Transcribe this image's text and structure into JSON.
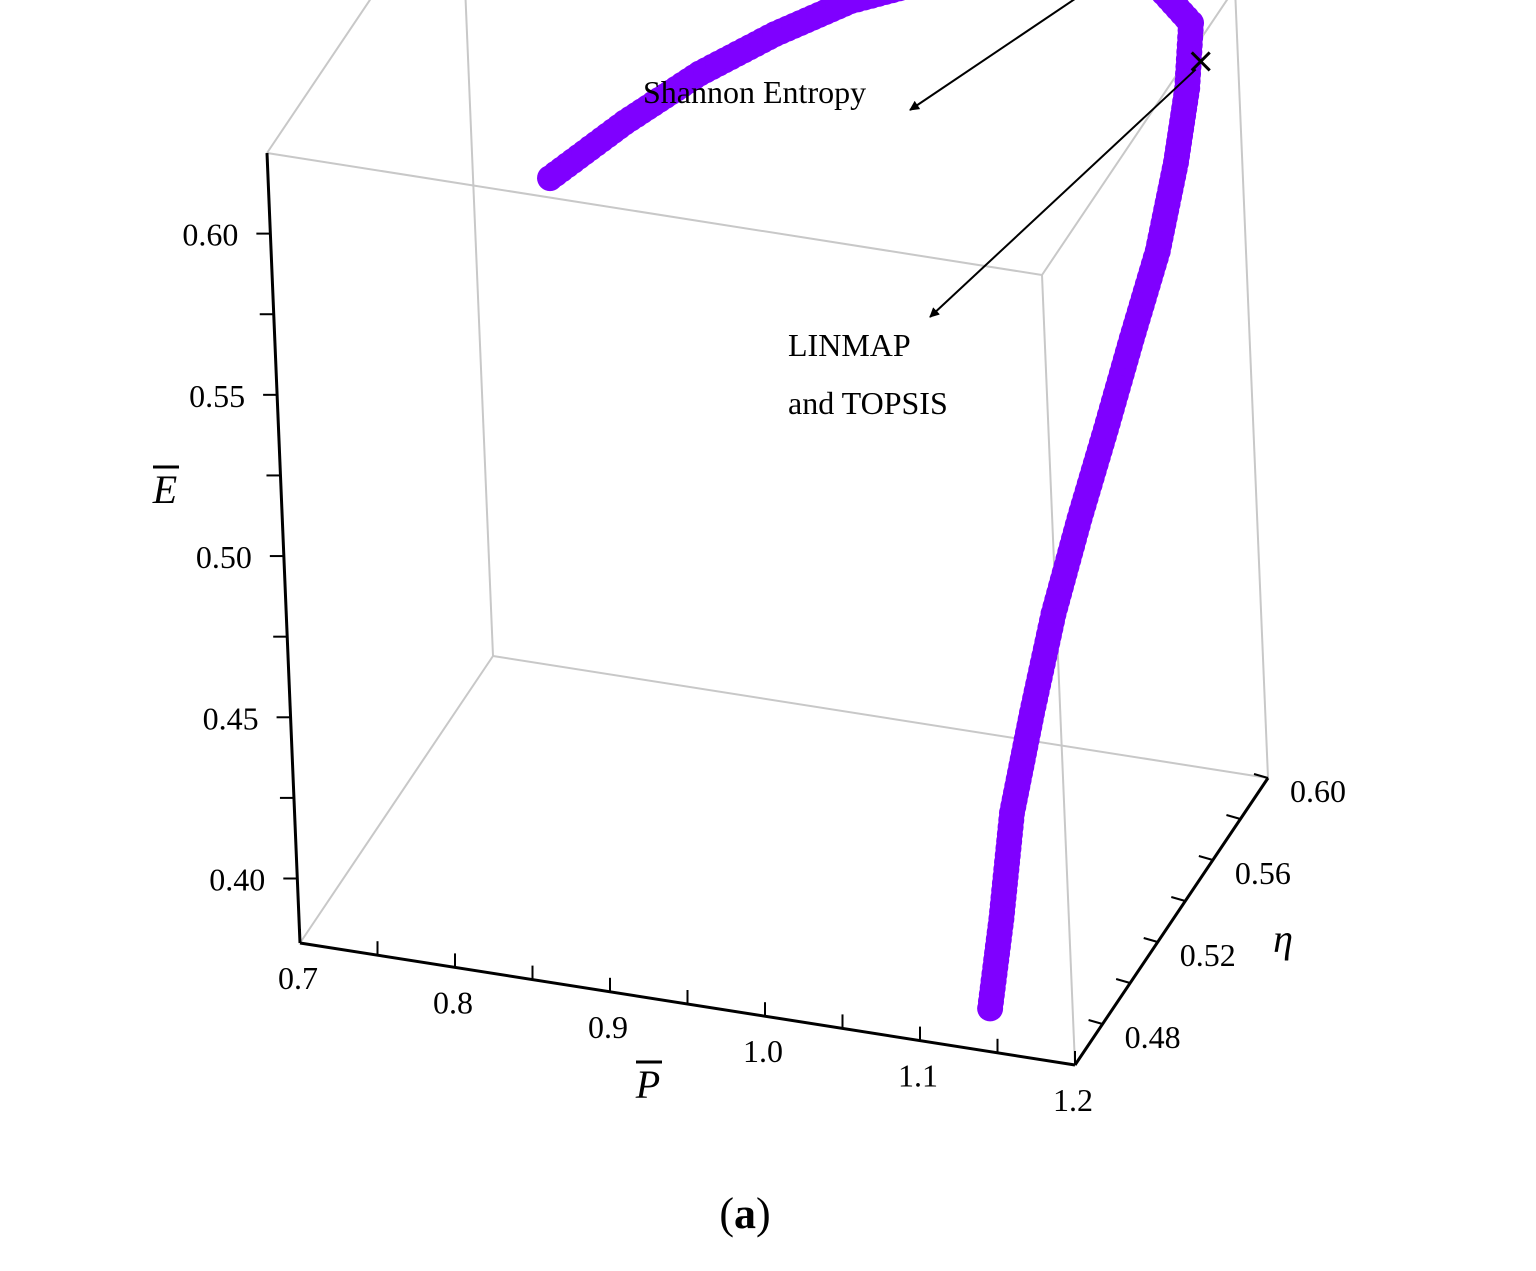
{
  "chart_data": {
    "type": "scatter",
    "dimensions": "3d",
    "title": "",
    "caption": {
      "open": "(",
      "letter": "a",
      "close": ")"
    },
    "axes": {
      "x": {
        "label": "P",
        "overline": true,
        "ticks": [
          "0.7",
          "0.8",
          "0.9",
          "1.0",
          "1.1",
          "1.2"
        ],
        "range": [
          0.7,
          1.2
        ]
      },
      "y": {
        "label": "η",
        "overline": false,
        "ticks": [
          "0.48",
          "0.52",
          "0.56",
          "0.60"
        ],
        "range": [
          0.46,
          0.6
        ]
      },
      "z": {
        "label": "E",
        "overline": true,
        "ticks": [
          "0.40",
          "0.45",
          "0.50",
          "0.55",
          "0.60"
        ],
        "range": [
          0.38,
          0.625
        ]
      }
    },
    "series": [
      {
        "marker_color": "#7f00ff",
        "points": [
          [
            0.75,
            0.6,
            0.532
          ],
          [
            0.8,
            0.6,
            0.553
          ],
          [
            0.85,
            0.6,
            0.572
          ],
          [
            0.9,
            0.6,
            0.588
          ],
          [
            0.95,
            0.6,
            0.602
          ],
          [
            1.0,
            0.6,
            0.612
          ],
          [
            1.05,
            0.6,
            0.619
          ],
          [
            1.1,
            0.6,
            0.623
          ],
          [
            1.15,
            0.598,
            0.624
          ],
          [
            1.18,
            0.59,
            0.619
          ],
          [
            1.19,
            0.575,
            0.609
          ],
          [
            1.195,
            0.56,
            0.596
          ],
          [
            1.195,
            0.545,
            0.578
          ],
          [
            1.19,
            0.53,
            0.56
          ],
          [
            1.185,
            0.515,
            0.541
          ],
          [
            1.175,
            0.505,
            0.519
          ],
          [
            1.165,
            0.495,
            0.495
          ],
          [
            1.155,
            0.488,
            0.468
          ],
          [
            1.145,
            0.482,
            0.44
          ],
          [
            1.14,
            0.477,
            0.41
          ],
          [
            1.135,
            0.472,
            0.385
          ]
        ]
      }
    ],
    "annotations": [
      {
        "text": "Shannon Entropy",
        "point": [
          1.13,
          0.6,
          0.624
        ]
      },
      {
        "lines": [
          "LINMAP",
          "and TOPSIS"
        ],
        "point": [
          1.19,
          0.585,
          0.611
        ]
      }
    ]
  }
}
